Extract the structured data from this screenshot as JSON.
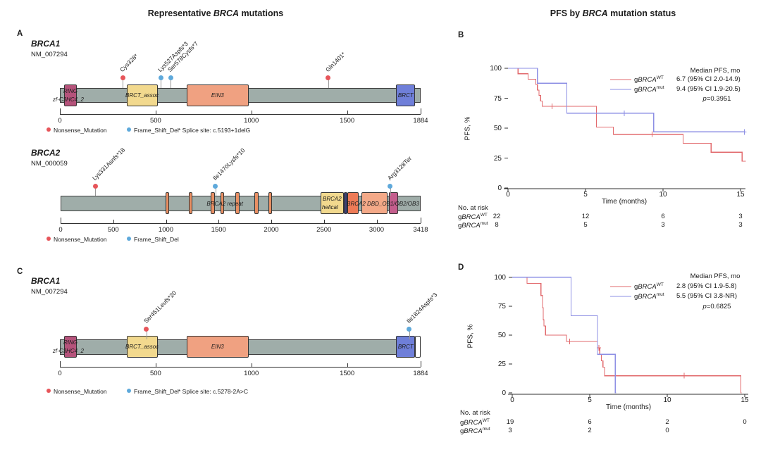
{
  "titles": {
    "left": {
      "pre": "Representative ",
      "italic": "BRCA",
      "post": " mutations"
    },
    "right": {
      "pre": "PFS by ",
      "italic": "BRCA",
      "post": " mutation status"
    }
  },
  "panel_letters": {
    "A": "A",
    "B": "B",
    "C": "C",
    "D": "D"
  },
  "colors": {
    "nonsense": "#e7555a",
    "frameshift": "#5ea9db",
    "km_wt": "#e2696c",
    "km_mut": "#8d8fe4",
    "bar_fill": "#9fada9",
    "bar_border": "#3f3f3f",
    "axis": "#2f2f2f",
    "stem": "#999999"
  },
  "chart_data": [
    {
      "type": "lollipop",
      "id": "A1",
      "panel": "A",
      "gene": "BRCA1",
      "transcript": "NM_007294",
      "xlim": [
        0,
        1884
      ],
      "xticks": [
        0,
        500,
        1000,
        1500,
        1884
      ],
      "domains": [
        {
          "label": "RING",
          "label2": "zf-C3HC4_2",
          "start": 22,
          "end": 88,
          "color": "#b5537b"
        },
        {
          "label": "BRCT_assoc",
          "start": 348,
          "end": 510,
          "color": "#f2d98e"
        },
        {
          "label": "EIN3",
          "start": 662,
          "end": 985,
          "color": "#f0a181"
        },
        {
          "label": "BRCT",
          "start": 1757,
          "end": 1855,
          "color": "#6f7fd9"
        }
      ],
      "bar_labels": [],
      "mutations": [
        {
          "label": "Cys328*",
          "pos": 328,
          "type": "nonsense"
        },
        {
          "label": "Lys527Aspfs*3",
          "pos": 527,
          "type": "frameshift"
        },
        {
          "label": "Ser578Cysfs*7",
          "pos": 578,
          "type": "frameshift"
        },
        {
          "label": "Gln1401*",
          "pos": 1401,
          "type": "nonsense"
        }
      ],
      "legend": [
        {
          "label": "Nonsense_Mutation",
          "color": "#e7555a"
        },
        {
          "label": "Frame_Shift_Del",
          "color": "#5ea9db"
        }
      ],
      "note": "* Splice site: c.5193+1delG"
    },
    {
      "type": "lollipop",
      "id": "A2",
      "panel": "A",
      "gene": "BRCA2",
      "transcript": "NM_000059",
      "xlim": [
        0,
        3418
      ],
      "xticks": [
        0,
        500,
        1000,
        1500,
        2000,
        2500,
        3000,
        3418
      ],
      "domains": [
        {
          "label": "",
          "start": 997,
          "end": 1032,
          "color": "#e98f63"
        },
        {
          "label": "",
          "start": 1217,
          "end": 1252,
          "color": "#e98f63"
        },
        {
          "label": "",
          "start": 1427,
          "end": 1462,
          "color": "#e98f63"
        },
        {
          "label": "",
          "start": 1517,
          "end": 1552,
          "color": "#e98f63"
        },
        {
          "label": "",
          "start": 1662,
          "end": 1697,
          "color": "#e98f63"
        },
        {
          "label": "",
          "start": 1842,
          "end": 1877,
          "color": "#e98f63"
        },
        {
          "label": "",
          "start": 1972,
          "end": 2007,
          "color": "#e98f63"
        },
        {
          "label": "BRCA2",
          "label2": "helical",
          "start": 2465,
          "end": 2690,
          "color": "#f2d98e"
        },
        {
          "label": "",
          "start": 2690,
          "end": 2725,
          "color": "#3c3f74"
        },
        {
          "label": "",
          "start": 2725,
          "end": 2830,
          "color": "#ee7b57"
        },
        {
          "label": "",
          "start": 2858,
          "end": 3105,
          "color": "#f4a988"
        },
        {
          "label": "",
          "start": 3120,
          "end": 3205,
          "color": "#c45e8d"
        }
      ],
      "bar_labels": [
        {
          "text": "BRCA2 repeat",
          "pos": 1560
        },
        {
          "text": "BRCA2 DBD_OB1/OB2/OB3",
          "pos": 3060
        }
      ],
      "mutations": [
        {
          "label": "Lys331Asnfs*18",
          "pos": 331,
          "type": "nonsense"
        },
        {
          "label": "Ile1470Lysfs*10",
          "pos": 1470,
          "type": "frameshift"
        },
        {
          "label": "Arg3128Ter",
          "pos": 3128,
          "type": "frameshift"
        }
      ],
      "legend": [
        {
          "label": "Nonsense_Mutation",
          "color": "#e7555a"
        },
        {
          "label": "Frame_Shift_Del",
          "color": "#5ea9db"
        }
      ],
      "note": ""
    },
    {
      "type": "lollipop",
      "id": "C1",
      "panel": "C",
      "gene": "BRCA1",
      "transcript": "NM_007294",
      "xlim": [
        0,
        1884
      ],
      "xticks": [
        0,
        500,
        1000,
        1500,
        1884
      ],
      "domains": [
        {
          "label": "RING",
          "label2": "zf-C3HC4_2",
          "start": 22,
          "end": 88,
          "color": "#b5537b"
        },
        {
          "label": "BRCT_assoc",
          "start": 348,
          "end": 510,
          "color": "#f2d98e"
        },
        {
          "label": "EIN3",
          "start": 662,
          "end": 985,
          "color": "#f0a181"
        },
        {
          "label": "BRCT",
          "start": 1757,
          "end": 1855,
          "color": "#6f7fd9"
        },
        {
          "label": "",
          "start": 1855,
          "end": 1884,
          "color": "#ffffff"
        }
      ],
      "bar_labels": [],
      "mutations": [
        {
          "label": "Ser451Leufs*20",
          "pos": 451,
          "type": "nonsense"
        },
        {
          "label": "Ile1824Aspfs*3",
          "pos": 1824,
          "type": "frameshift"
        }
      ],
      "legend": [
        {
          "label": "Nonsense_Mutation",
          "color": "#e7555a"
        },
        {
          "label": "Frame_Shift_Del",
          "color": "#5ea9db"
        }
      ],
      "note": "* Splice site: c.5278-2A>C"
    },
    {
      "type": "km",
      "id": "B",
      "panel": "B",
      "xlabel": "Time (months)",
      "ylabel": "PFS, %",
      "xticks": [
        0,
        5,
        10,
        15
      ],
      "yticks": [
        0,
        25,
        50,
        75,
        100
      ],
      "xlim": [
        0,
        15.4
      ],
      "ylim": [
        0,
        100
      ],
      "legend_header": "Median PFS, mo",
      "p_value": {
        "italic": "p",
        "text": "=0.3951"
      },
      "series": [
        {
          "name": {
            "pre": "g",
            "italic": "BRCA",
            "sup": "WT"
          },
          "color": "#e2696c",
          "median": "6.7 (95% CI 2.0-14.9)",
          "events": [
            [
              0.65,
              95.5
            ],
            [
              1.3,
              90.9
            ],
            [
              1.8,
              86.4
            ],
            [
              1.9,
              81.8
            ],
            [
              2.0,
              77.3
            ],
            [
              2.1,
              72.7
            ],
            [
              2.2,
              68.2
            ],
            [
              5.7,
              50.8
            ],
            [
              6.8,
              44.9
            ],
            [
              11.3,
              37.4
            ],
            [
              13.1,
              29.9
            ],
            [
              15.1,
              22.4
            ]
          ],
          "end": 15.35,
          "censors": [
            [
              2.85,
              68.2
            ],
            [
              9.3,
              44.9
            ]
          ]
        },
        {
          "name": {
            "pre": "g",
            "italic": "BRCA",
            "sup": "mut"
          },
          "color": "#8d8fe4",
          "median": "9.4 (95% CI 1.9-20.5)",
          "events": [
            [
              1.9,
              87.5
            ],
            [
              3.8,
              62.5
            ],
            [
              9.4,
              46.9
            ]
          ],
          "end": 15.3,
          "censors": [
            [
              7.5,
              62.5
            ],
            [
              15.25,
              46.9
            ]
          ]
        }
      ],
      "risk_table": {
        "title": "No. at risk",
        "rows": [
          {
            "name": {
              "pre": "g",
              "italic": "BRCA",
              "sup": "WT"
            },
            "values": [
              "22",
              "12",
              "6",
              "3"
            ]
          },
          {
            "name": {
              "pre": "g",
              "italic": "BRCA",
              "sup": "mut"
            },
            "values": [
              "8",
              "5",
              "3",
              "3"
            ]
          }
        ]
      }
    },
    {
      "type": "km",
      "id": "D",
      "panel": "D",
      "xlabel": "Time (months)",
      "ylabel": "PFS, %",
      "xticks": [
        0,
        5,
        10,
        15
      ],
      "yticks": [
        0,
        25,
        50,
        75,
        100
      ],
      "xlim": [
        0,
        15.4
      ],
      "ylim": [
        0,
        100
      ],
      "legend_header": "Median PFS, mo",
      "p_value": {
        "italic": "p",
        "text": "=0.6825"
      },
      "series": [
        {
          "name": {
            "pre": "g",
            "italic": "BRCA",
            "sup": "WT"
          },
          "color": "#e2696c",
          "median": "2.8 (95% CI 1.9-5.8)",
          "events": [
            [
              0.95,
              94.7
            ],
            [
              1.85,
              84.2
            ],
            [
              1.95,
              73.7
            ],
            [
              2.0,
              63.2
            ],
            [
              2.05,
              57.9
            ],
            [
              2.15,
              50
            ],
            [
              3.5,
              44.4
            ],
            [
              5.5,
              38.9
            ],
            [
              5.65,
              33.3
            ],
            [
              5.75,
              27.8
            ],
            [
              5.85,
              22.2
            ],
            [
              5.95,
              14.8
            ],
            [
              14.75,
              0
            ]
          ],
          "end": 14.8,
          "censors": [
            [
              3.7,
              44.4
            ],
            [
              5.6,
              38.9
            ],
            [
              11.1,
              14.8
            ]
          ]
        },
        {
          "name": {
            "pre": "g",
            "italic": "BRCA",
            "sup": "mut"
          },
          "color": "#8d8fe4",
          "median": "5.5 (95% CI 3.8-NR)",
          "events": [
            [
              3.8,
              66.7
            ],
            [
              5.5,
              33.3
            ],
            [
              6.65,
              0
            ]
          ],
          "end": 6.7,
          "censors": []
        }
      ],
      "risk_table": {
        "title": "No. at risk",
        "rows": [
          {
            "name": {
              "pre": "g",
              "italic": "BRCA",
              "sup": "WT"
            },
            "values": [
              "19",
              "6",
              "2",
              "0"
            ]
          },
          {
            "name": {
              "pre": "g",
              "italic": "BRCA",
              "sup": "mut"
            },
            "values": [
              "3",
              "2",
              "0",
              ""
            ]
          }
        ]
      }
    }
  ]
}
